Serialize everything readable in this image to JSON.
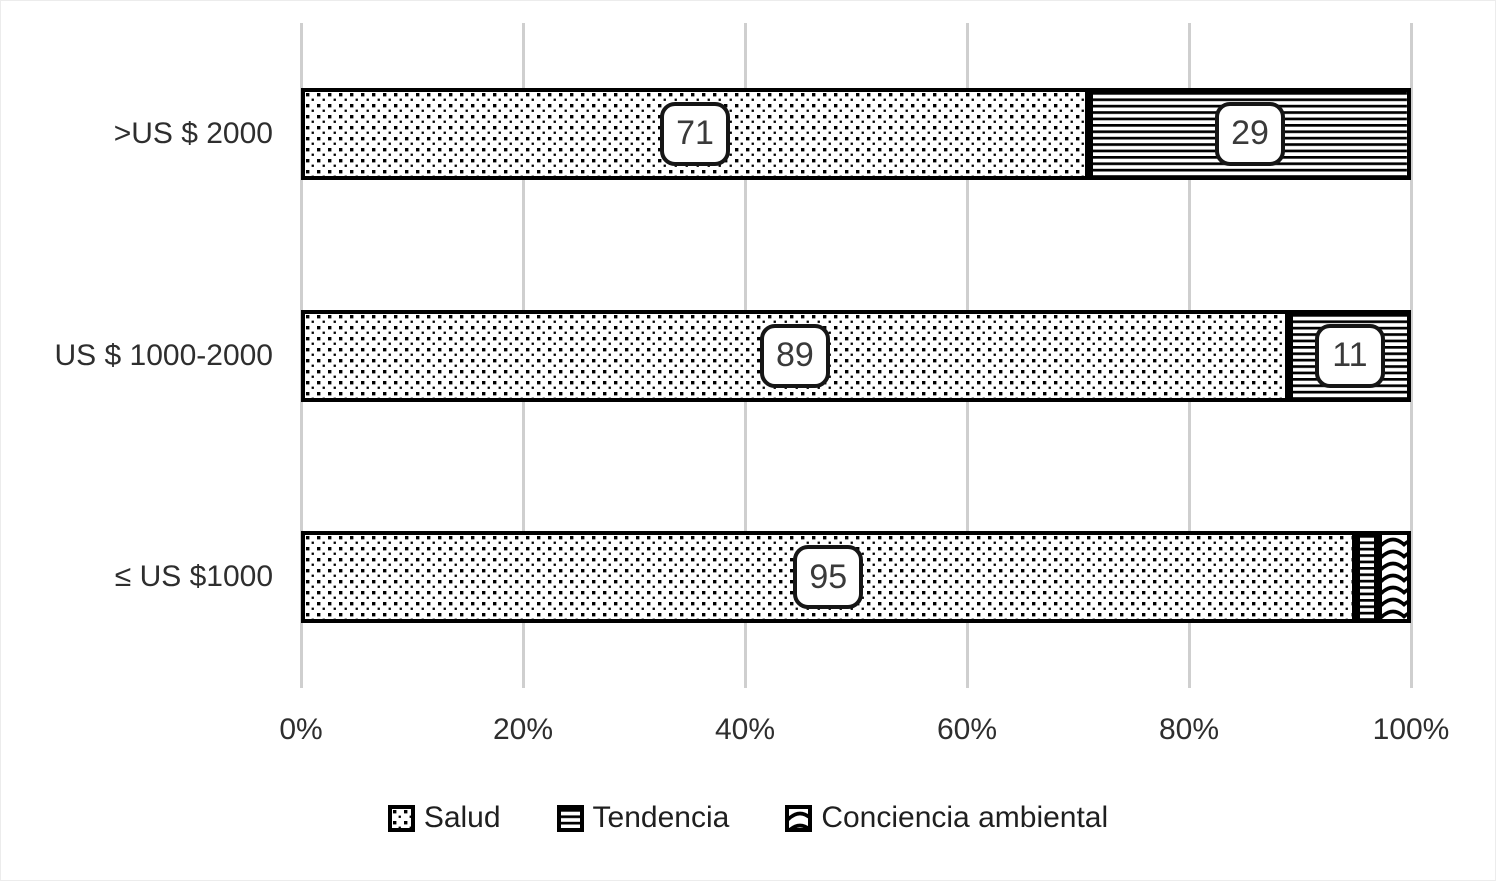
{
  "chart_data": {
    "type": "bar",
    "orientation": "horizontal",
    "stacked": true,
    "unit": "%",
    "title": "",
    "xlabel": "",
    "ylabel": "",
    "categories": [
      ">US $ 2000",
      "US $ 1000-2000",
      "≤ US $1000"
    ],
    "series": [
      {
        "name": "Salud",
        "pattern": "dots",
        "values": [
          71,
          89,
          95
        ]
      },
      {
        "name": "Tendencia",
        "pattern": "hlines",
        "values": [
          29,
          11,
          2
        ]
      },
      {
        "name": "Conciencia ambiental",
        "pattern": "wave",
        "values": [
          0,
          0,
          3
        ]
      }
    ],
    "x_ticks": [
      "0%",
      "20%",
      "40%",
      "60%",
      "80%",
      "100%"
    ],
    "xlim": [
      0,
      100
    ],
    "grid": "vertical",
    "legend_position": "bottom",
    "data_label_min_value_shown": 5,
    "shown_data_labels": [
      71,
      29,
      89,
      11,
      95
    ],
    "colors": {
      "foreground": "#000000",
      "background": "#ffffff",
      "gridline": "#cfcfcf",
      "text": "#2e2e2e"
    }
  }
}
